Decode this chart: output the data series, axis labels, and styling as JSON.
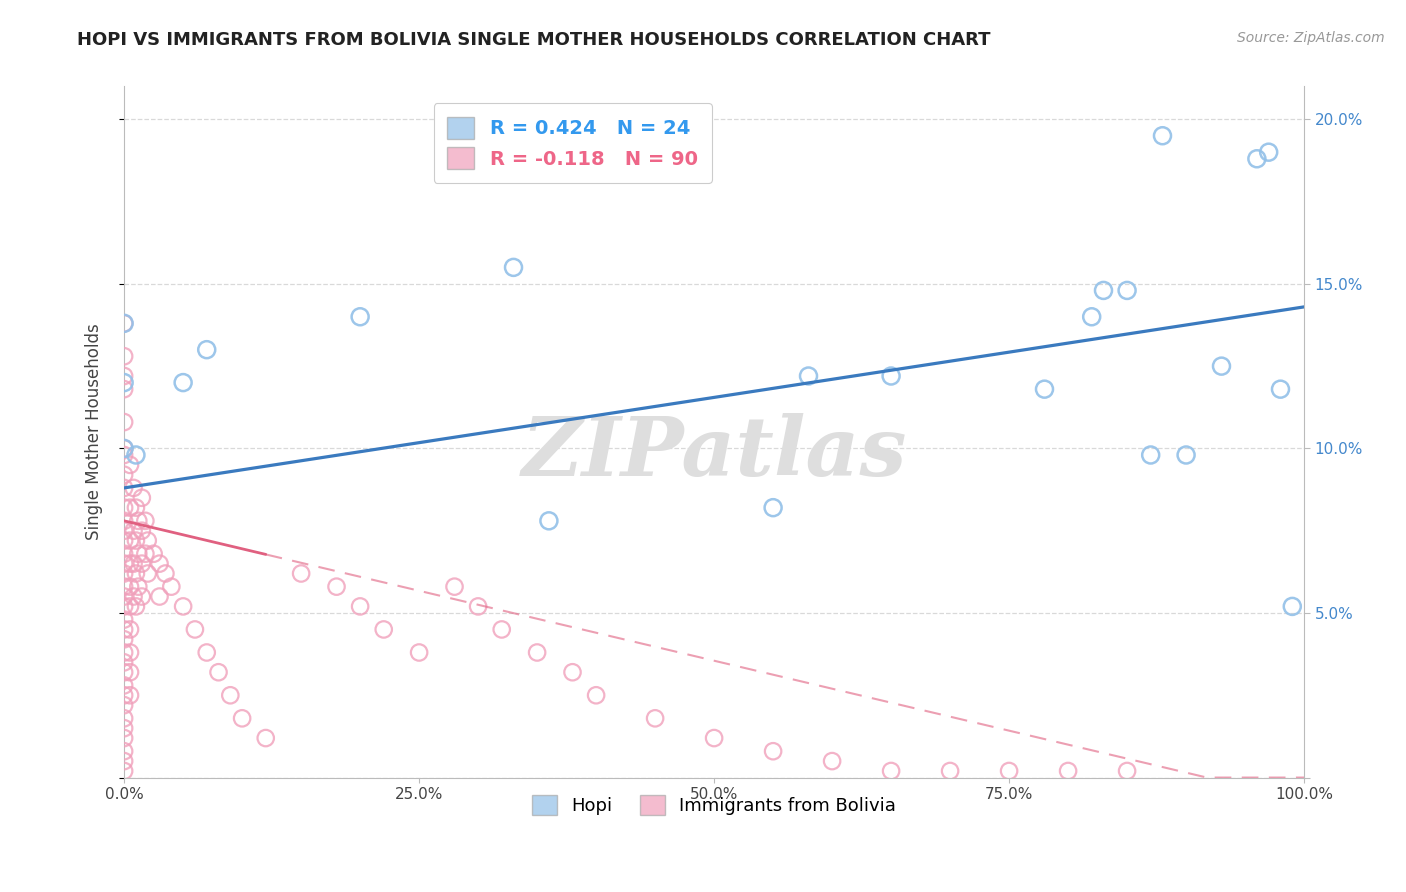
{
  "title": "HOPI VS IMMIGRANTS FROM BOLIVIA SINGLE MOTHER HOUSEHOLDS CORRELATION CHART",
  "source_text": "Source: ZipAtlas.com",
  "ylabel": "Single Mother Households",
  "xlim": [
    0,
    1.0
  ],
  "ylim": [
    0,
    0.21
  ],
  "xticks": [
    0.0,
    0.25,
    0.5,
    0.75,
    1.0
  ],
  "xtick_labels": [
    "0.0%",
    "25.0%",
    "50.0%",
    "75.0%",
    "100.0%"
  ],
  "yticks": [
    0.0,
    0.05,
    0.1,
    0.15,
    0.2
  ],
  "ytick_labels_right": [
    "",
    "5.0%",
    "10.0%",
    "15.0%",
    "20.0%"
  ],
  "watermark": "ZIPatlas",
  "hopi_color": "#92c0e8",
  "bolivia_color": "#f0a0bb",
  "hopi_line_color": "#3a7abf",
  "bolivia_line_color": "#e06080",
  "hopi_scatter": [
    [
      0.0,
      0.138
    ],
    [
      0.0,
      0.12
    ],
    [
      0.0,
      0.1
    ],
    [
      0.01,
      0.098
    ],
    [
      0.05,
      0.12
    ],
    [
      0.07,
      0.13
    ],
    [
      0.2,
      0.14
    ],
    [
      0.33,
      0.155
    ],
    [
      0.36,
      0.078
    ],
    [
      0.55,
      0.082
    ],
    [
      0.58,
      0.122
    ],
    [
      0.65,
      0.122
    ],
    [
      0.78,
      0.118
    ],
    [
      0.82,
      0.14
    ],
    [
      0.83,
      0.148
    ],
    [
      0.85,
      0.148
    ],
    [
      0.87,
      0.098
    ],
    [
      0.88,
      0.195
    ],
    [
      0.9,
      0.098
    ],
    [
      0.93,
      0.125
    ],
    [
      0.96,
      0.188
    ],
    [
      0.97,
      0.19
    ],
    [
      0.98,
      0.118
    ],
    [
      0.99,
      0.052
    ]
  ],
  "bolivia_scatter": [
    [
      0.0,
      0.138
    ],
    [
      0.0,
      0.128
    ],
    [
      0.0,
      0.122
    ],
    [
      0.0,
      0.118
    ],
    [
      0.0,
      0.108
    ],
    [
      0.0,
      0.1
    ],
    [
      0.0,
      0.098
    ],
    [
      0.0,
      0.092
    ],
    [
      0.0,
      0.088
    ],
    [
      0.0,
      0.082
    ],
    [
      0.0,
      0.078
    ],
    [
      0.0,
      0.075
    ],
    [
      0.0,
      0.072
    ],
    [
      0.0,
      0.068
    ],
    [
      0.0,
      0.065
    ],
    [
      0.0,
      0.062
    ],
    [
      0.0,
      0.058
    ],
    [
      0.0,
      0.055
    ],
    [
      0.0,
      0.052
    ],
    [
      0.0,
      0.048
    ],
    [
      0.0,
      0.045
    ],
    [
      0.0,
      0.042
    ],
    [
      0.0,
      0.038
    ],
    [
      0.0,
      0.035
    ],
    [
      0.0,
      0.032
    ],
    [
      0.0,
      0.028
    ],
    [
      0.0,
      0.025
    ],
    [
      0.0,
      0.022
    ],
    [
      0.0,
      0.018
    ],
    [
      0.0,
      0.015
    ],
    [
      0.0,
      0.012
    ],
    [
      0.0,
      0.008
    ],
    [
      0.0,
      0.005
    ],
    [
      0.0,
      0.002
    ],
    [
      0.005,
      0.095
    ],
    [
      0.005,
      0.082
    ],
    [
      0.005,
      0.072
    ],
    [
      0.005,
      0.065
    ],
    [
      0.005,
      0.058
    ],
    [
      0.005,
      0.052
    ],
    [
      0.005,
      0.045
    ],
    [
      0.005,
      0.038
    ],
    [
      0.005,
      0.032
    ],
    [
      0.005,
      0.025
    ],
    [
      0.008,
      0.088
    ],
    [
      0.008,
      0.075
    ],
    [
      0.008,
      0.065
    ],
    [
      0.008,
      0.055
    ],
    [
      0.01,
      0.082
    ],
    [
      0.01,
      0.072
    ],
    [
      0.01,
      0.062
    ],
    [
      0.01,
      0.052
    ],
    [
      0.012,
      0.078
    ],
    [
      0.012,
      0.068
    ],
    [
      0.012,
      0.058
    ],
    [
      0.015,
      0.085
    ],
    [
      0.015,
      0.075
    ],
    [
      0.015,
      0.065
    ],
    [
      0.015,
      0.055
    ],
    [
      0.018,
      0.078
    ],
    [
      0.018,
      0.068
    ],
    [
      0.02,
      0.072
    ],
    [
      0.02,
      0.062
    ],
    [
      0.025,
      0.068
    ],
    [
      0.03,
      0.065
    ],
    [
      0.03,
      0.055
    ],
    [
      0.035,
      0.062
    ],
    [
      0.04,
      0.058
    ],
    [
      0.05,
      0.052
    ],
    [
      0.06,
      0.045
    ],
    [
      0.07,
      0.038
    ],
    [
      0.08,
      0.032
    ],
    [
      0.09,
      0.025
    ],
    [
      0.1,
      0.018
    ],
    [
      0.12,
      0.012
    ],
    [
      0.15,
      0.062
    ],
    [
      0.18,
      0.058
    ],
    [
      0.2,
      0.052
    ],
    [
      0.22,
      0.045
    ],
    [
      0.25,
      0.038
    ],
    [
      0.28,
      0.058
    ],
    [
      0.3,
      0.052
    ],
    [
      0.32,
      0.045
    ],
    [
      0.35,
      0.038
    ],
    [
      0.38,
      0.032
    ],
    [
      0.4,
      0.025
    ],
    [
      0.45,
      0.018
    ],
    [
      0.5,
      0.012
    ],
    [
      0.55,
      0.008
    ],
    [
      0.6,
      0.005
    ],
    [
      0.65,
      0.002
    ],
    [
      0.7,
      0.002
    ],
    [
      0.75,
      0.002
    ],
    [
      0.8,
      0.002
    ],
    [
      0.85,
      0.002
    ]
  ]
}
